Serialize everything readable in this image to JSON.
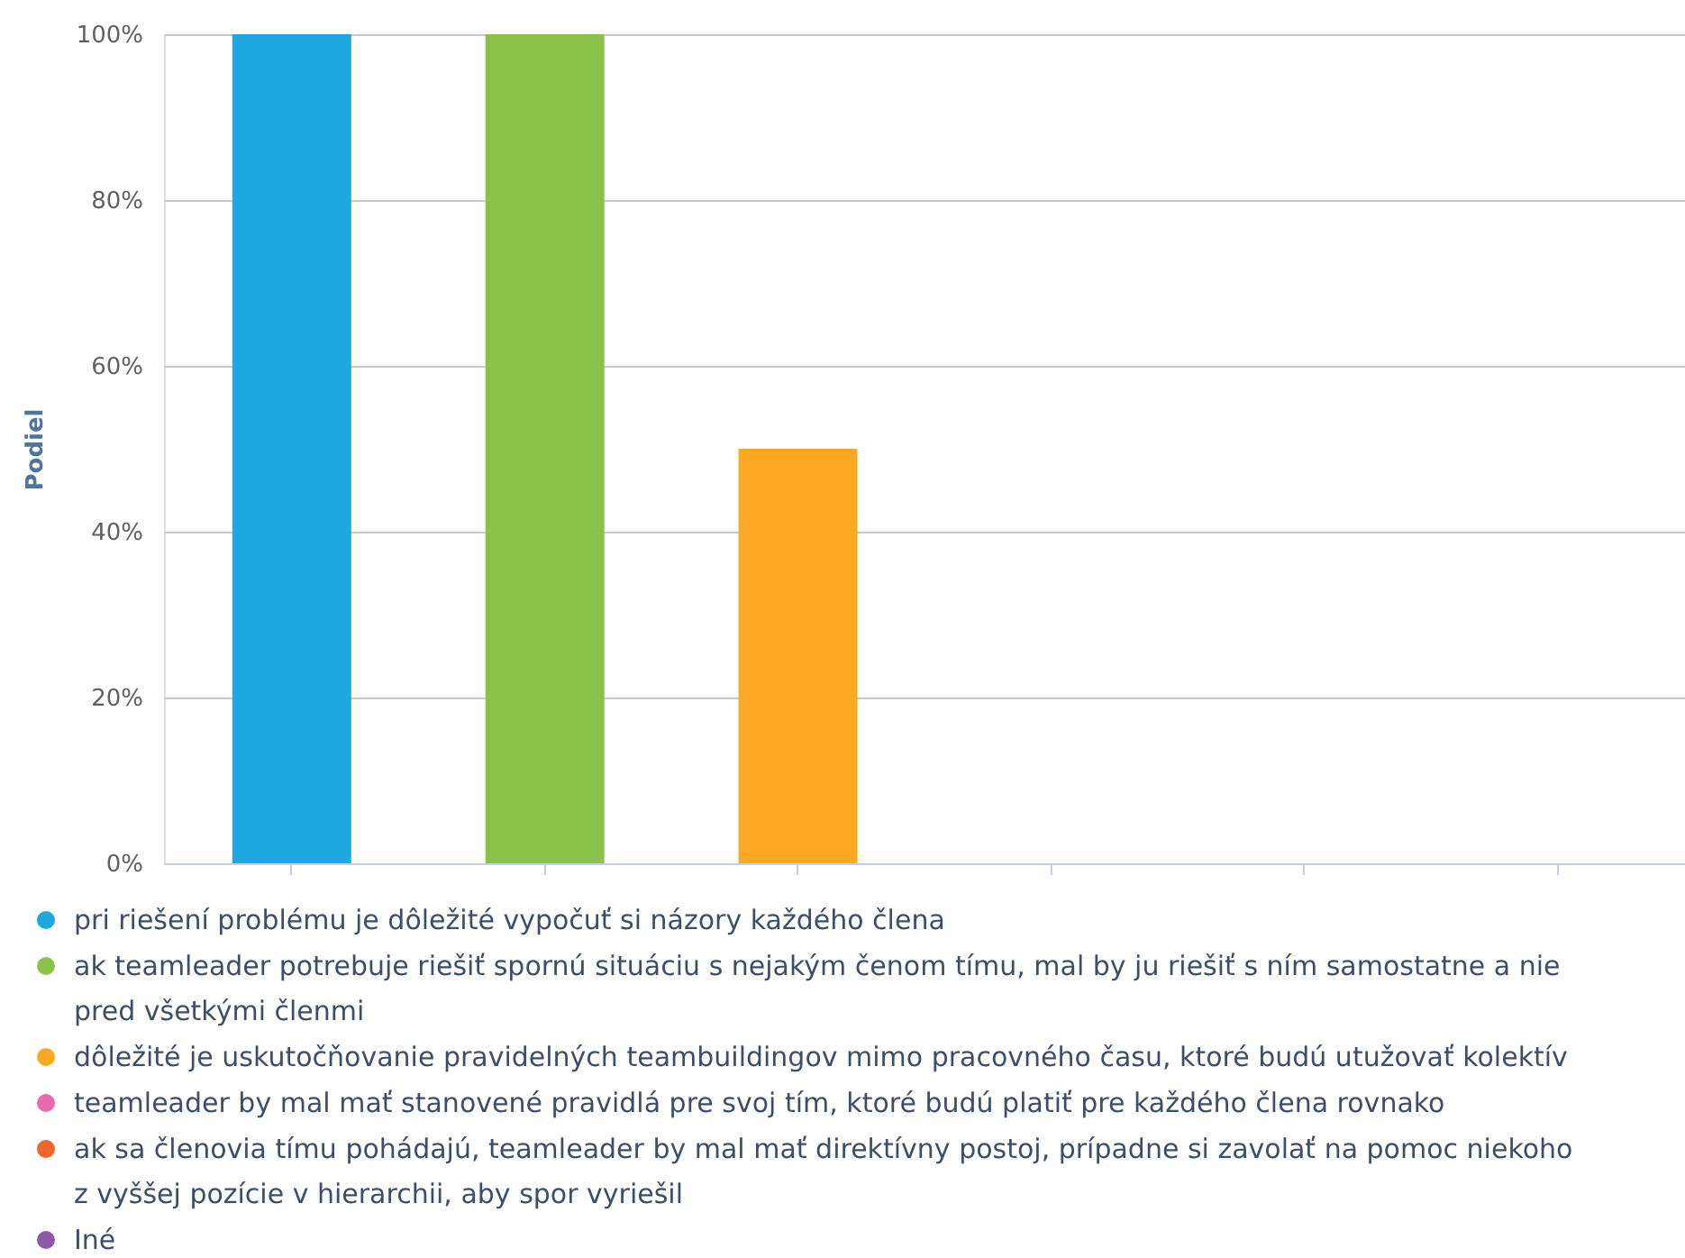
{
  "chart_data": {
    "type": "bar",
    "ylabel": "Podiel",
    "categories": [
      null,
      null,
      null,
      null,
      null,
      null
    ],
    "series": [
      {
        "name": "pri riešení problému je dôležité vypočuť si názory každého člena",
        "color": "#1fa8df",
        "values": [
          100,
          null,
          null,
          null,
          null,
          null
        ]
      },
      {
        "name": "ak teamleader potrebuje riešiť spornú situáciu s nejakým čenom tímu, mal by ju riešiť s ním samostatne a nie pred všetkými členmi",
        "color": "#8bc34a",
        "values": [
          null,
          100,
          null,
          null,
          null,
          null
        ]
      },
      {
        "name": "dôležité je uskutočňovanie pravidelných teambuildingov mimo pracovného času, ktoré budú utužovať kolektív",
        "color": "#fba922",
        "values": [
          null,
          null,
          50,
          null,
          null,
          null
        ]
      },
      {
        "name": "teamleader by mal mať stanovené pravidlá pre svoj tím, ktoré budú platiť pre každého člena rovnako",
        "color": "#e66bb0",
        "values": [
          null,
          null,
          null,
          0,
          null,
          null
        ]
      },
      {
        "name": "ak sa členovia tímu pohádajú, teamleader by mal mať direktívny postoj, prípadne si zavolať na pomoc niekoho z vyššej pozície v hierarchii, aby spor vyriešil",
        "color": "#f0662a",
        "values": [
          null,
          null,
          null,
          null,
          0,
          null
        ]
      },
      {
        "name": "Iné",
        "color": "#8c5aa8",
        "values": [
          null,
          null,
          null,
          null,
          null,
          0
        ]
      }
    ],
    "ylim": [
      0,
      100
    ],
    "yticks": [
      {
        "value": 0,
        "label": "0%"
      },
      {
        "value": 20,
        "label": "20%"
      },
      {
        "value": 40,
        "label": "40%"
      },
      {
        "value": 60,
        "label": "60%"
      },
      {
        "value": 80,
        "label": "80%"
      },
      {
        "value": 100,
        "label": "100%"
      }
    ],
    "grid": "y",
    "legend": "bottom",
    "tick_labels": "y"
  }
}
